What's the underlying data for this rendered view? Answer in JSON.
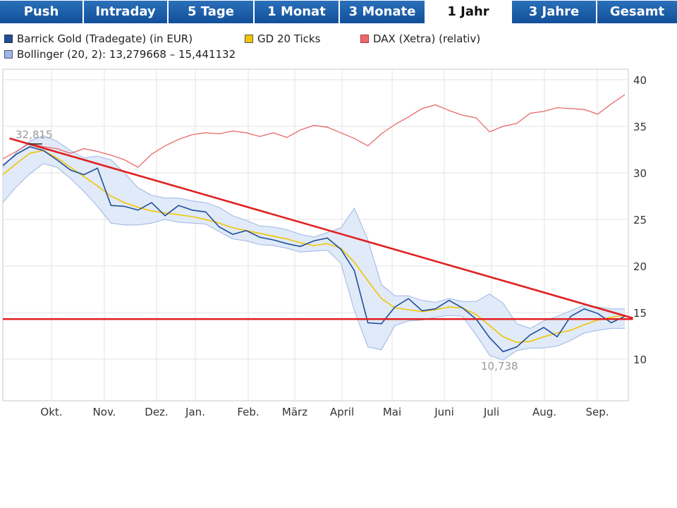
{
  "tabs": [
    {
      "label": "Push",
      "active": false
    },
    {
      "label": "Intraday",
      "active": false
    },
    {
      "label": "5 Tage",
      "active": false
    },
    {
      "label": "1 Monat",
      "active": false
    },
    {
      "label": "3 Monate",
      "active": false
    },
    {
      "label": "1 Jahr",
      "active": true
    },
    {
      "label": "3 Jahre",
      "active": false
    },
    {
      "label": "Gesamt",
      "active": false
    }
  ],
  "legend": {
    "barrick": {
      "label": "Barrick Gold (Tradegate) (in EUR)",
      "color": "#1f4e9c"
    },
    "gd20": {
      "label": "GD 20 Ticks",
      "color": "#f2c500"
    },
    "dax": {
      "label": "DAX (Xetra) (relativ)",
      "color": "#e86a6a"
    },
    "bollinger": {
      "label": "Bollinger (20, 2): 13,279668 – 15,441132",
      "color": "#9db6e6"
    }
  },
  "chart_data": {
    "type": "line",
    "x_labels": [
      "Okt.",
      "Nov.",
      "Dez.",
      "Jan.",
      "Feb.",
      "März",
      "April",
      "Mai",
      "Juni",
      "Juli",
      "Aug.",
      "Sep."
    ],
    "y_ticks": [
      "40",
      "35",
      "30",
      "25",
      "20",
      "15",
      "10"
    ],
    "ylim": [
      5,
      41
    ],
    "grid": true,
    "max_label": "32,815",
    "min_label": "10,738",
    "series": [
      {
        "name": "Barrick Gold (Tradegate) (in EUR)",
        "color": "#1f4e9c",
        "values": [
          30.8,
          32.0,
          32.8,
          32.4,
          31.4,
          30.3,
          29.8,
          30.5,
          26.5,
          26.4,
          26.0,
          26.8,
          25.4,
          26.5,
          26.0,
          25.8,
          24.2,
          23.4,
          23.8,
          23.1,
          22.8,
          22.4,
          22.1,
          22.7,
          23.0,
          21.8,
          19.5,
          13.9,
          13.8,
          15.6,
          16.5,
          15.2,
          15.4,
          16.3,
          15.5,
          14.3,
          12.3,
          10.8,
          11.3,
          12.6,
          13.4,
          12.4,
          14.6,
          15.4,
          14.9,
          13.9,
          14.6
        ]
      },
      {
        "name": "GD 20 Ticks",
        "color": "#f2c500",
        "values": [
          29.8,
          31.0,
          32.1,
          32.4,
          31.6,
          30.6,
          29.6,
          28.6,
          27.5,
          26.8,
          26.3,
          25.9,
          25.7,
          25.5,
          25.3,
          25.0,
          24.6,
          24.1,
          23.8,
          23.5,
          23.2,
          22.9,
          22.5,
          22.2,
          22.4,
          21.9,
          20.4,
          18.4,
          16.5,
          15.5,
          15.3,
          15.1,
          15.3,
          15.6,
          15.5,
          14.8,
          13.6,
          12.4,
          11.8,
          11.9,
          12.4,
          12.8,
          13.1,
          13.7,
          14.2,
          14.5,
          14.7
        ]
      },
      {
        "name": "Bollinger upper",
        "color": "#9db6e6",
        "values": [
          30.6,
          32.2,
          33.4,
          34.0,
          33.4,
          32.4,
          31.6,
          31.8,
          31.4,
          30.0,
          28.4,
          27.6,
          27.3,
          27.3,
          27.0,
          26.8,
          26.3,
          25.4,
          24.9,
          24.3,
          24.2,
          23.9,
          23.4,
          23.1,
          23.6,
          24.1,
          26.2,
          22.8,
          18.0,
          16.8,
          16.8,
          16.3,
          16.1,
          16.5,
          16.2,
          16.2,
          17.0,
          16.0,
          13.8,
          13.3,
          14.1,
          14.6,
          15.2,
          15.8,
          15.6,
          15.4,
          15.4
        ]
      },
      {
        "name": "Bollinger lower",
        "color": "#9db6e6",
        "values": [
          26.8,
          28.5,
          29.9,
          31.0,
          30.6,
          29.4,
          28.0,
          26.4,
          24.6,
          24.4,
          24.4,
          24.6,
          25.0,
          24.7,
          24.6,
          24.5,
          23.7,
          22.9,
          22.7,
          22.3,
          22.2,
          21.9,
          21.5,
          21.6,
          21.7,
          20.3,
          15.2,
          11.3,
          11.0,
          13.6,
          14.1,
          14.2,
          14.5,
          14.7,
          14.6,
          12.6,
          10.4,
          9.9,
          10.9,
          11.2,
          11.2,
          11.4,
          12.0,
          12.8,
          13.1,
          13.3,
          13.3
        ]
      },
      {
        "name": "DAX (Xetra) (relativ)",
        "color": "#e86a6a",
        "values": [
          31.5,
          32.3,
          33.2,
          32.8,
          32.6,
          32.1,
          32.6,
          32.3,
          31.9,
          31.4,
          30.6,
          32.0,
          32.9,
          33.6,
          34.1,
          34.3,
          34.2,
          34.5,
          34.3,
          33.9,
          34.3,
          33.8,
          34.6,
          35.1,
          34.9,
          34.3,
          33.7,
          32.9,
          34.2,
          35.2,
          36.0,
          36.9,
          37.3,
          36.7,
          36.2,
          35.9,
          34.4,
          35.0,
          35.3,
          36.4,
          36.6,
          37.0,
          36.9,
          36.8,
          36.3,
          37.4,
          38.4
        ]
      }
    ],
    "trendlines": [
      {
        "x0": 0.5,
        "y0": 33.7,
        "x1": 46.6,
        "y1": 14.4,
        "color": "#e02020"
      },
      {
        "x0": 0,
        "y0": 14.3,
        "x1": 46.6,
        "y1": 14.3,
        "color": "#e02020"
      }
    ]
  }
}
